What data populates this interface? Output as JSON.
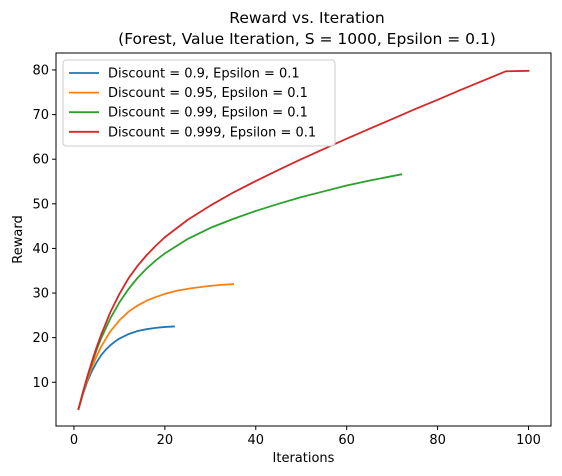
{
  "chart_data": {
    "type": "line",
    "title_line1": "Reward vs. Iteration",
    "title_line2": "(Forest, Value Iteration, S = 1000, Epsilon = 0.1)",
    "xlabel": "Iterations",
    "ylabel": "Reward",
    "xlim": [
      -3.95,
      104.95
    ],
    "ylim": [
      0.2,
      83.8
    ],
    "xticks": [
      0,
      20,
      40,
      60,
      80,
      100
    ],
    "yticks": [
      10,
      20,
      30,
      40,
      50,
      60,
      70,
      80
    ],
    "grid": false,
    "legend_position": "upper-left",
    "series": [
      {
        "name": "Discount = 0.9, Epsilon = 0.1",
        "color": "#1f77b4",
        "x": [
          1,
          2,
          3,
          4,
          5,
          6,
          7,
          8,
          9,
          10,
          12,
          14,
          16,
          18,
          20,
          22
        ],
        "y": [
          4.0,
          7.4,
          10.3,
          12.6,
          14.5,
          16.1,
          17.3,
          18.3,
          19.1,
          19.8,
          20.8,
          21.5,
          21.9,
          22.2,
          22.4,
          22.5
        ]
      },
      {
        "name": "Discount = 0.95, Epsilon = 0.1",
        "color": "#ff7f0e",
        "x": [
          1,
          2,
          3,
          4,
          5,
          6,
          8,
          10,
          12,
          14,
          16,
          18,
          20,
          23,
          26,
          29,
          32,
          35
        ],
        "y": [
          4.0,
          7.6,
          10.7,
          13.5,
          15.9,
          18.0,
          21.4,
          23.9,
          25.8,
          27.2,
          28.3,
          29.1,
          29.8,
          30.6,
          31.1,
          31.5,
          31.8,
          32.0
        ]
      },
      {
        "name": "Discount = 0.99, Epsilon = 0.1",
        "color": "#2ca02c",
        "x": [
          1,
          2,
          3,
          4,
          5,
          6,
          8,
          10,
          12,
          14,
          16,
          18,
          20,
          25,
          30,
          35,
          40,
          45,
          50,
          55,
          60,
          65,
          72
        ],
        "y": [
          4.0,
          7.8,
          11.3,
          14.4,
          17.3,
          19.9,
          24.3,
          27.9,
          30.9,
          33.4,
          35.5,
          37.3,
          38.9,
          42.1,
          44.6,
          46.6,
          48.4,
          50.0,
          51.5,
          52.8,
          54.1,
          55.2,
          56.6
        ]
      },
      {
        "name": "Discount = 0.999, Epsilon = 0.1",
        "color": "#d62728",
        "x": [
          1,
          2,
          3,
          4,
          5,
          6,
          8,
          10,
          12,
          14,
          16,
          18,
          20,
          25,
          30,
          35,
          40,
          45,
          50,
          55,
          60,
          65,
          70,
          75,
          80,
          85,
          90,
          95,
          100
        ],
        "y": [
          4.0,
          7.9,
          11.5,
          14.8,
          17.9,
          20.7,
          25.7,
          29.8,
          33.3,
          36.1,
          38.5,
          40.6,
          42.5,
          46.4,
          49.6,
          52.5,
          55.1,
          57.6,
          60.0,
          62.3,
          64.6,
          66.8,
          69.0,
          71.2,
          73.3,
          75.5,
          77.6,
          79.7,
          79.8
        ]
      }
    ]
  }
}
